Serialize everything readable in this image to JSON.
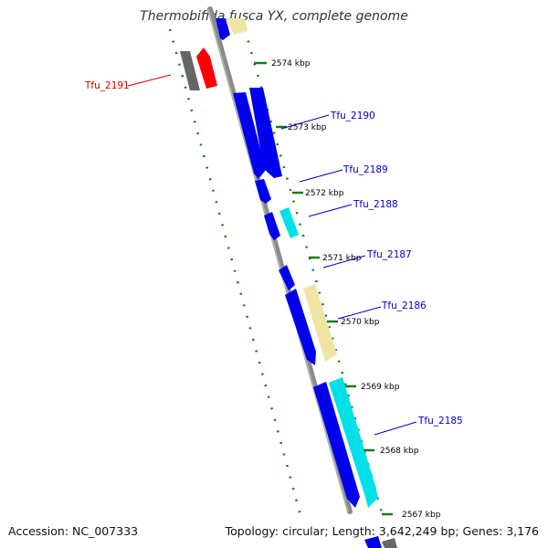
{
  "title": "Thermobifida fusca YX, complete genome",
  "footer": {
    "accession": "Accession: NC_007333",
    "summary": "Topology: circular; Length: 3,642,249 bp; Genes: 3,176"
  },
  "colors": {
    "backbone": "#888888",
    "tick": "#1a7a1a",
    "gene_label_blue": "#0000cc",
    "gene_label_red": "#cc0000",
    "cds_blue": "#0000ee",
    "cds_cyan": "#00e0e8",
    "cds_khaki": "#efe4a4",
    "cds_red": "#ff0000",
    "cds_gray": "#666666"
  },
  "kbp_labels": [
    "2574 kbp",
    "2573 kbp",
    "2572 kbp",
    "2571 kbp",
    "2570 kbp",
    "2569 kbp",
    "2568 kbp",
    "2567 kbp"
  ],
  "gene_labels": [
    "Tfu_2191",
    "Tfu_2190",
    "Tfu_2189",
    "Tfu_2188",
    "Tfu_2187",
    "Tfu_2186",
    "Tfu_2185"
  ]
}
